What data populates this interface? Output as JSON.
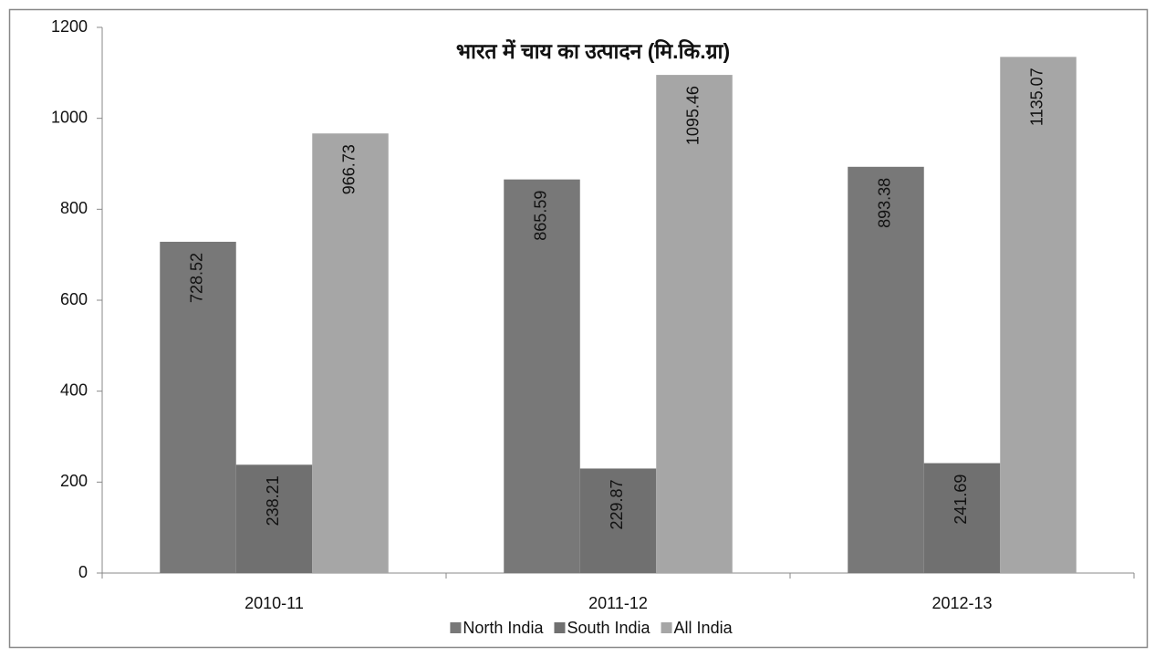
{
  "chart_data": {
    "type": "bar",
    "title": "भारत में चाय का उत्पादन (मि.कि.ग्रा)",
    "categories": [
      "2010-11",
      "2011-12",
      "2012-13"
    ],
    "series": [
      {
        "name": "North India",
        "color": "#787878",
        "values": [
          728.52,
          865.59,
          893.38
        ]
      },
      {
        "name": "South India",
        "color": "#707070",
        "values": [
          238.21,
          229.87,
          241.69
        ]
      },
      {
        "name": "All India",
        "color": "#a6a6a6",
        "values": [
          966.73,
          1095.46,
          1135.07
        ]
      }
    ],
    "ylim": [
      0,
      1200
    ],
    "yticks": [
      0,
      200,
      400,
      600,
      800,
      1000,
      1200
    ],
    "legend": "bottom",
    "data_labels": true
  }
}
